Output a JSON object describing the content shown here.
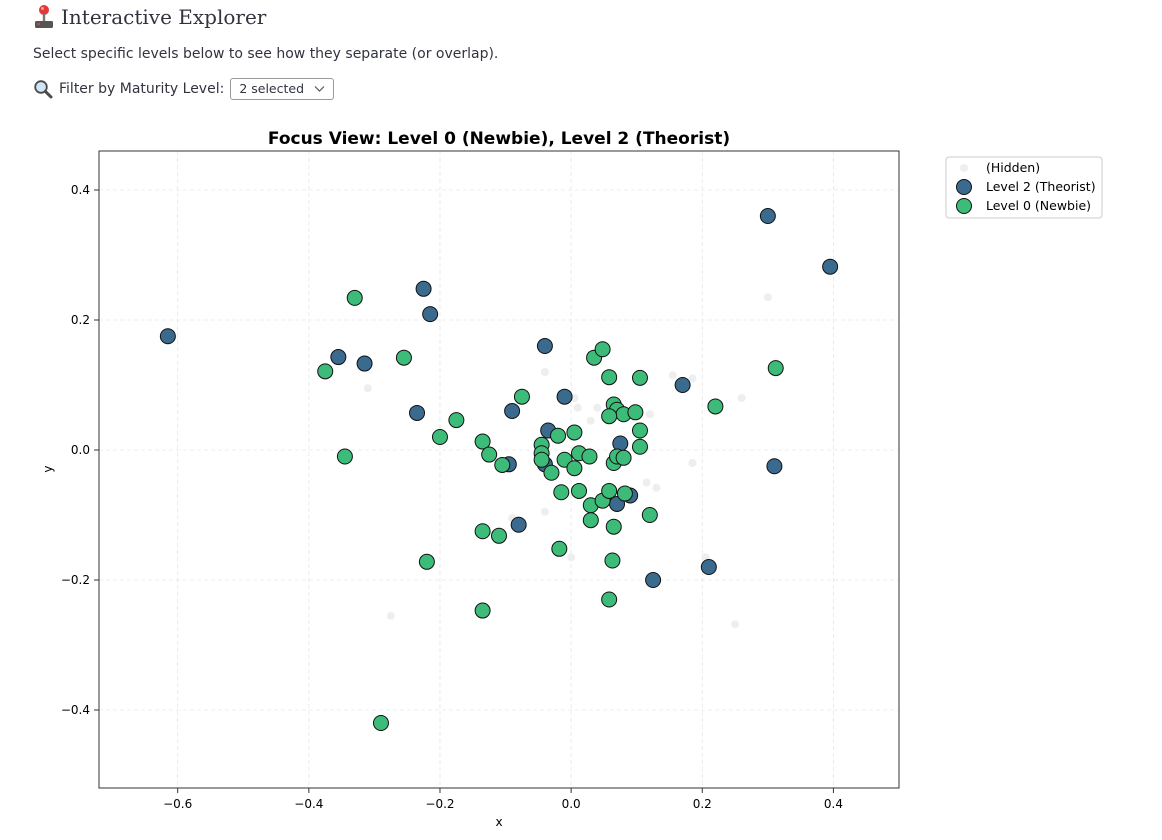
{
  "header": {
    "icon": "joystick-icon",
    "title": "Interactive Explorer"
  },
  "subtitle": "Select specific levels below to see how they separate (or overlap).",
  "filter": {
    "icon": "magnifier-icon",
    "label": "Filter by Maturity Level:",
    "selected_value": "2 selected"
  },
  "chart_data": {
    "type": "scatter",
    "title": "Focus View: Level 0 (Newbie), Level 2 (Theorist)",
    "xlabel": "x",
    "ylabel": "y",
    "xlim": [
      -0.72,
      0.5
    ],
    "ylim": [
      -0.52,
      0.46
    ],
    "xticks": [
      -0.6,
      -0.4,
      -0.2,
      0.0,
      0.2,
      0.4
    ],
    "yticks": [
      -0.4,
      -0.2,
      0.0,
      0.2,
      0.4
    ],
    "xtick_labels": [
      "−0.6",
      "−0.4",
      "−0.2",
      "0.0",
      "0.2",
      "0.4"
    ],
    "ytick_labels": [
      "−0.4",
      "−0.2",
      "0.0",
      "0.2",
      "0.4"
    ],
    "grid": true,
    "legend_position": "outside-top-right",
    "series": [
      {
        "name": "(Hidden)",
        "color": "#eeeeee",
        "points": [
          [
            -0.31,
            0.095
          ],
          [
            0.155,
            0.115
          ],
          [
            0.185,
            0.11
          ],
          [
            0.26,
            0.08
          ],
          [
            0.3,
            0.235
          ],
          [
            0.005,
            0.08
          ],
          [
            0.01,
            0.065
          ],
          [
            0.04,
            0.065
          ],
          [
            0.12,
            0.055
          ],
          [
            -0.04,
            0.12
          ],
          [
            0.185,
            -0.02
          ],
          [
            0.115,
            -0.05
          ],
          [
            0.13,
            -0.058
          ],
          [
            -0.04,
            -0.095
          ],
          [
            0.0,
            -0.165
          ],
          [
            -0.09,
            -0.105
          ],
          [
            -0.275,
            -0.255
          ],
          [
            0.25,
            -0.268
          ],
          [
            0.205,
            -0.165
          ],
          [
            0.03,
            0.045
          ]
        ]
      },
      {
        "name": "Level 2 (Theorist)",
        "color": "#3b6a8f",
        "points": [
          [
            -0.615,
            0.175
          ],
          [
            -0.355,
            0.143
          ],
          [
            -0.315,
            0.133
          ],
          [
            -0.225,
            0.248
          ],
          [
            -0.215,
            0.209
          ],
          [
            -0.235,
            0.057
          ],
          [
            -0.04,
            0.16
          ],
          [
            -0.01,
            0.082
          ],
          [
            -0.09,
            0.06
          ],
          [
            -0.035,
            0.03
          ],
          [
            0.075,
            0.01
          ],
          [
            0.17,
            0.1
          ],
          [
            0.3,
            0.36
          ],
          [
            0.395,
            0.282
          ],
          [
            0.31,
            -0.025
          ],
          [
            -0.095,
            -0.022
          ],
          [
            -0.04,
            -0.022
          ],
          [
            0.07,
            -0.083
          ],
          [
            0.09,
            -0.07
          ],
          [
            -0.08,
            -0.115
          ],
          [
            0.125,
            -0.2
          ],
          [
            0.21,
            -0.18
          ]
        ]
      },
      {
        "name": "Level 0 (Newbie)",
        "color": "#3dbb78",
        "points": [
          [
            -0.33,
            0.234
          ],
          [
            -0.375,
            0.121
          ],
          [
            -0.255,
            0.142
          ],
          [
            -0.345,
            -0.01
          ],
          [
            -0.2,
            0.02
          ],
          [
            -0.175,
            0.046
          ],
          [
            -0.135,
            0.013
          ],
          [
            -0.125,
            -0.007
          ],
          [
            -0.105,
            -0.023
          ],
          [
            -0.075,
            0.082
          ],
          [
            0.035,
            0.142
          ],
          [
            0.048,
            0.155
          ],
          [
            0.058,
            0.112
          ],
          [
            0.105,
            0.111
          ],
          [
            0.065,
            0.07
          ],
          [
            0.07,
            0.062
          ],
          [
            0.08,
            0.055
          ],
          [
            0.058,
            0.052
          ],
          [
            0.098,
            0.058
          ],
          [
            0.105,
            0.03
          ],
          [
            0.105,
            0.005
          ],
          [
            0.22,
            0.067
          ],
          [
            0.312,
            0.126
          ],
          [
            0.005,
            0.027
          ],
          [
            -0.02,
            0.022
          ],
          [
            -0.045,
            0.008
          ],
          [
            -0.045,
            -0.005
          ],
          [
            -0.045,
            -0.015
          ],
          [
            -0.03,
            -0.035
          ],
          [
            -0.01,
            -0.015
          ],
          [
            0.005,
            -0.028
          ],
          [
            0.012,
            -0.005
          ],
          [
            0.028,
            -0.01
          ],
          [
            0.065,
            -0.02
          ],
          [
            0.07,
            -0.01
          ],
          [
            0.08,
            -0.012
          ],
          [
            -0.015,
            -0.065
          ],
          [
            0.012,
            -0.063
          ],
          [
            0.03,
            -0.085
          ],
          [
            0.048,
            -0.078
          ],
          [
            0.058,
            -0.063
          ],
          [
            0.082,
            -0.067
          ],
          [
            0.03,
            -0.108
          ],
          [
            0.065,
            -0.118
          ],
          [
            0.12,
            -0.1
          ],
          [
            -0.135,
            -0.125
          ],
          [
            -0.11,
            -0.132
          ],
          [
            -0.22,
            -0.172
          ],
          [
            -0.018,
            -0.152
          ],
          [
            0.063,
            -0.17
          ],
          [
            -0.135,
            -0.247
          ],
          [
            0.058,
            -0.23
          ],
          [
            -0.29,
            -0.42
          ]
        ]
      }
    ]
  }
}
